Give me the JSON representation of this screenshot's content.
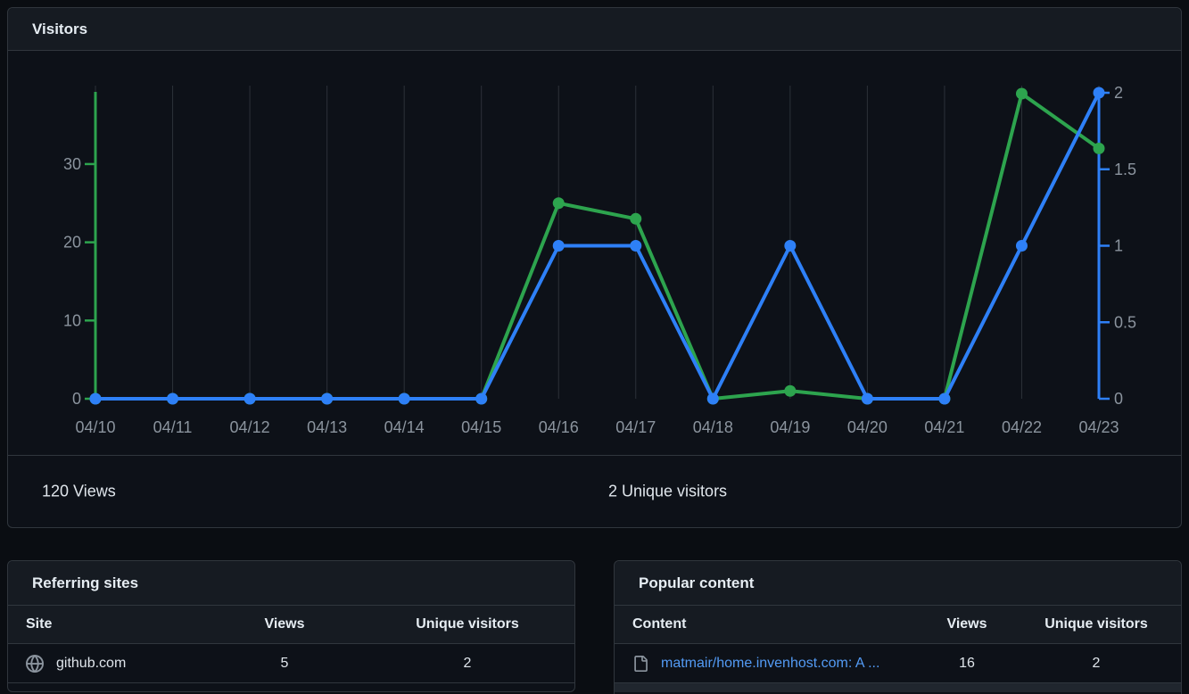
{
  "colors": {
    "page_bg": "#0a0d12",
    "panel_bg": "#0d1118",
    "band_bg": "#161b22",
    "border": "#30363d",
    "text": "#e6edf3",
    "muted": "#8b949e",
    "gridline": "#2c3139",
    "views_green": "#2da44e",
    "unique_blue": "#2e80f7",
    "link_blue": "#539bf5",
    "axis_label": "#8b949e"
  },
  "visitors_panel": {
    "title": "Visitors",
    "summary": {
      "views": "120 Views",
      "unique": "2 Unique visitors"
    }
  },
  "chart_data": {
    "type": "line",
    "title": "Visitors",
    "xlabel": "",
    "ylabel": "",
    "grid": "vertical",
    "legend": "none",
    "categories": [
      "04/10",
      "04/11",
      "04/12",
      "04/13",
      "04/14",
      "04/15",
      "04/16",
      "04/17",
      "04/18",
      "04/19",
      "04/20",
      "04/21",
      "04/22",
      "04/23"
    ],
    "series": [
      {
        "name": "Views",
        "color": "#2da44e",
        "axis": "left",
        "values": [
          0,
          0,
          0,
          0,
          0,
          0,
          25,
          23,
          0,
          1,
          0,
          0,
          39,
          32
        ]
      },
      {
        "name": "Unique visitors",
        "color": "#2e80f7",
        "axis": "right",
        "values": [
          0,
          0,
          0,
          0,
          0,
          0,
          1,
          1,
          0,
          1,
          0,
          0,
          1,
          2
        ]
      }
    ],
    "left_axis": {
      "ticks": [
        0,
        10,
        20,
        30
      ],
      "range": [
        0,
        39
      ],
      "max": 39,
      "color": "#2da44e",
      "position": "left"
    },
    "right_axis": {
      "ticks": [
        0,
        0.5,
        1,
        1.5,
        2
      ],
      "range": [
        0,
        2
      ],
      "max": 2,
      "color": "#2e80f7",
      "position": "right"
    }
  },
  "referring_sites": {
    "title": "Referring sites",
    "columns": {
      "site": "Site",
      "views": "Views",
      "unique": "Unique visitors"
    },
    "icons": {
      "site": "globe-icon"
    },
    "rows": [
      {
        "site": "github.com",
        "views": "5",
        "unique": "2"
      }
    ]
  },
  "popular_content": {
    "title": "Popular content",
    "columns": {
      "content": "Content",
      "views": "Views",
      "unique": "Unique visitors"
    },
    "icons": {
      "content": "file-icon"
    },
    "rows": [
      {
        "content": "matmair/home.invenhost.com: A ...",
        "views": "16",
        "unique": "2"
      }
    ]
  }
}
